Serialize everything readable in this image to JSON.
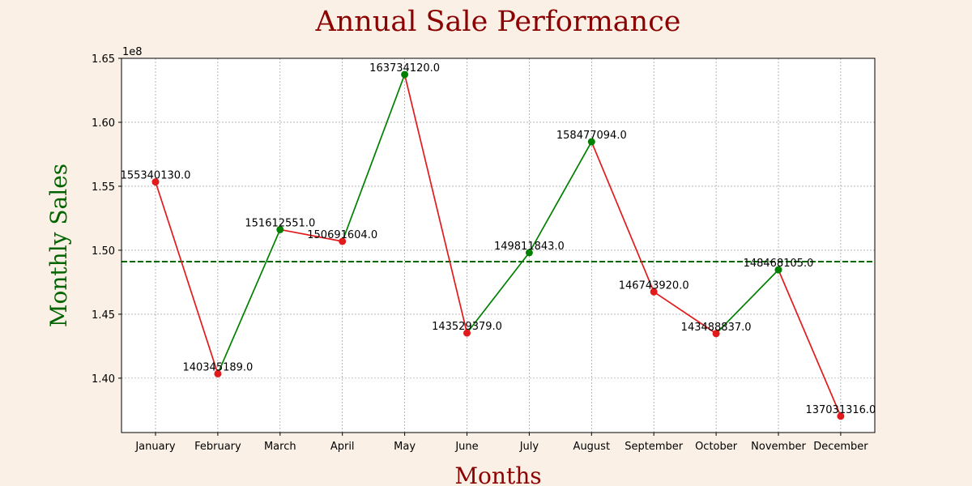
{
  "chart_data": {
    "type": "line",
    "title": "Annual Sale Performance",
    "xlabel": "Months",
    "ylabel": "Monthly Sales",
    "y_offset_label": "1e8",
    "categories": [
      "January",
      "February",
      "March",
      "April",
      "May",
      "June",
      "July",
      "August",
      "September",
      "October",
      "November",
      "December"
    ],
    "values": [
      155340130.0,
      140345189.0,
      151612551.0,
      150691604.0,
      163734120.0,
      143529379.0,
      149811843.0,
      158477094.0,
      146743920.0,
      143488837.0,
      148468105.0,
      137031316.0
    ],
    "data_labels": [
      "155340130.0",
      "140345189.0",
      "151612551.0",
      "150691604.0",
      "163734120.0",
      "143529379.0",
      "149811843.0",
      "158477094.0",
      "146743920.0",
      "143488837.0",
      "148468105.0",
      "137031316.0"
    ],
    "y_ticks": [
      140000000,
      145000000,
      150000000,
      155000000,
      160000000,
      165000000
    ],
    "y_tick_labels": [
      "1.40",
      "1.45",
      "1.50",
      "1.55",
      "1.60",
      "1.65"
    ],
    "ylim": [
      135750000,
      165000000
    ],
    "average_line": 149106174,
    "grid": true,
    "colors": {
      "increase": "#008000",
      "decrease": "#e31a1c",
      "average_line": "#006400",
      "title": "#8b0000",
      "ylabel": "#006400",
      "background": "#faf0e6"
    }
  }
}
